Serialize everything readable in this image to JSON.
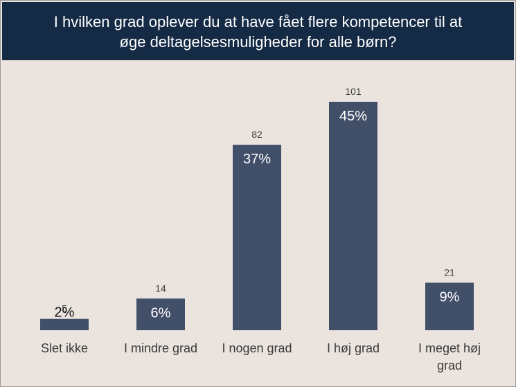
{
  "chart_data": {
    "type": "bar",
    "title": "I hvilken grad oplever du at have fået flere kompetencer til at øge deltagelsesmuligheder for alle børn?",
    "title_lines": [
      "I hvilken grad oplever du at have fået flere kompetencer til at",
      "øge deltagelsesmuligheder for alle børn?"
    ],
    "categories": [
      "Slet ikke",
      "I mindre grad",
      "I nogen grad",
      "I høj grad",
      "I meget høj grad"
    ],
    "category_lines": [
      [
        "Slet ikke"
      ],
      [
        "I mindre grad"
      ],
      [
        "I nogen grad"
      ],
      [
        "I høj grad"
      ],
      [
        "I meget høj",
        "grad"
      ]
    ],
    "values": [
      5,
      14,
      82,
      101,
      21
    ],
    "count_labels": [
      "5",
      "14",
      "82",
      "101",
      "21"
    ],
    "percent_labels": [
      "2%",
      "6%",
      "37%",
      "45%",
      "9%"
    ],
    "percent_values": [
      2,
      6,
      37,
      45,
      9
    ],
    "xlabel": "",
    "ylabel": "",
    "grid": false,
    "colors": {
      "bar": "#414f69",
      "title_bg": "#142a45",
      "background": "#ebe4de"
    }
  }
}
